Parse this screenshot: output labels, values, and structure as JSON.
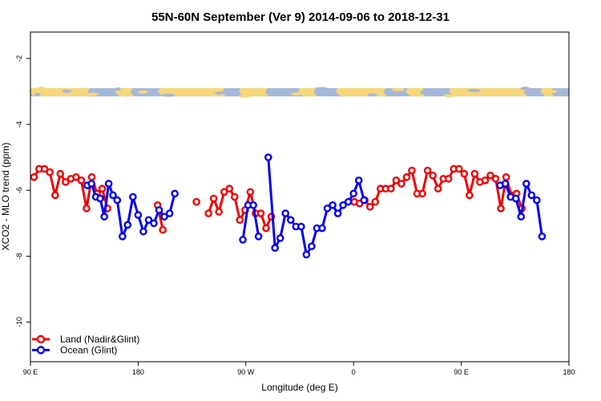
{
  "chart_data": {
    "type": "line",
    "title": "55N-60N September (Ver 9)   2014-09-06 to 2018-12-31",
    "xlabel": "Longitude (deg E)",
    "ylabel": "XCO2 - MLO trend (ppm)",
    "xlim": [
      90,
      450
    ],
    "ylim": [
      -11.2,
      -1.2
    ],
    "x_ticks": [
      {
        "value": 90,
        "label": "90 E"
      },
      {
        "value": 162,
        "label": "180"
      },
      {
        "value": 234,
        "label": "90 W"
      },
      {
        "value": 306,
        "label": "0"
      },
      {
        "value": 378,
        "label": "90 E"
      },
      {
        "value": 450,
        "label": "180"
      }
    ],
    "y_ticks": [
      {
        "value": -10,
        "label": "-10"
      },
      {
        "value": -8,
        "label": "-8"
      },
      {
        "value": -6,
        "label": "-6"
      },
      {
        "value": -4,
        "label": "-4"
      },
      {
        "value": -2,
        "label": "-2"
      }
    ],
    "grid": false,
    "legend_position": "bottom-left",
    "map_strip": {
      "y_range": [
        -3.15,
        -2.9
      ],
      "land_color": "#F7D77A",
      "ocean_color": "#A6B8D8"
    },
    "series": [
      {
        "name": "Land (Nadir&Glint)",
        "color": "#EE0000",
        "segments": [
          [
            [
              92.4,
              -5.6
            ],
            [
              95.8,
              -5.35
            ],
            [
              99.4,
              -5.35
            ],
            [
              102.9,
              -5.45
            ],
            [
              106.5,
              -6.15
            ],
            [
              110,
              -5.5
            ],
            [
              113.5,
              -5.75
            ],
            [
              117,
              -5.65
            ],
            [
              120.5,
              -5.6
            ],
            [
              124,
              -5.7
            ],
            [
              127.5,
              -6.55
            ],
            [
              131,
              -5.6
            ],
            [
              134.5,
              -6.1
            ],
            [
              138,
              -5.95
            ],
            [
              141.5,
              -6.55
            ]
          ],
          [
            [
              175,
              -6.45
            ],
            [
              178.5,
              -7.2
            ]
          ],
          [
            [
              201,
              -6.35
            ]
          ],
          [
            [
              209,
              -6.7
            ],
            [
              212.5,
              -6.25
            ],
            [
              216,
              -6.65
            ],
            [
              219.5,
              -6.05
            ],
            [
              223,
              -5.95
            ],
            [
              226.5,
              -6.2
            ],
            [
              230,
              -6.9
            ],
            [
              233.5,
              -6.6
            ],
            [
              237,
              -6.05
            ],
            [
              240.5,
              -6.7
            ],
            [
              244,
              -6.7
            ],
            [
              247.5,
              -7.15
            ],
            [
              251,
              -6.8
            ]
          ],
          [
            [
              306.5,
              -6.35
            ],
            [
              310,
              -6.4
            ],
            [
              313.5,
              -6.3
            ],
            [
              317,
              -6.5
            ],
            [
              320.5,
              -6.35
            ],
            [
              324,
              -5.95
            ],
            [
              327.5,
              -5.95
            ],
            [
              331,
              -5.95
            ],
            [
              334.5,
              -5.7
            ],
            [
              338,
              -5.8
            ],
            [
              341.5,
              -5.6
            ],
            [
              345,
              -5.4
            ],
            [
              348.5,
              -6.1
            ],
            [
              352,
              -6.1
            ],
            [
              355.5,
              -5.4
            ],
            [
              359,
              -5.55
            ],
            [
              362.5,
              -5.95
            ],
            [
              366,
              -5.65
            ],
            [
              369.5,
              -5.65
            ],
            [
              373,
              -5.35
            ],
            [
              376.5,
              -5.35
            ],
            [
              380,
              -5.5
            ],
            [
              383.5,
              -6.15
            ],
            [
              387,
              -5.5
            ],
            [
              390.5,
              -5.75
            ],
            [
              394,
              -5.7
            ],
            [
              397.5,
              -5.55
            ],
            [
              401,
              -5.65
            ],
            [
              404.5,
              -6.55
            ],
            [
              408,
              -5.6
            ],
            [
              411.5,
              -6.15
            ],
            [
              415,
              -6.1
            ],
            [
              418.5,
              -6.55
            ]
          ]
        ]
      },
      {
        "name": "Ocean (Glint)",
        "color": "#0000EE",
        "segments": [
          [
            [
              128,
              -5.85
            ],
            [
              130.8,
              -5.8
            ],
            [
              133.7,
              -6.2
            ],
            [
              136.6,
              -6.25
            ],
            [
              139.4,
              -6.8
            ],
            [
              142.3,
              -5.8
            ],
            [
              145.2,
              -6.15
            ],
            [
              148,
              -6.3
            ],
            [
              151.5,
              -7.4
            ],
            [
              155,
              -7.05
            ],
            [
              158.5,
              -6.2
            ],
            [
              162,
              -6.75
            ],
            [
              165.5,
              -7.25
            ],
            [
              169,
              -6.9
            ],
            [
              172.5,
              -7.0
            ],
            [
              176,
              -6.6
            ],
            [
              179.5,
              -6.8
            ],
            [
              183,
              -6.7
            ],
            [
              186.5,
              -6.1
            ]
          ],
          [
            [
              232,
              -7.5
            ],
            [
              235.5,
              -6.45
            ],
            [
              239,
              -6.45
            ],
            [
              242.5,
              -7.4
            ]
          ],
          [
            [
              249,
              -5.0
            ],
            [
              253.5,
              -7.75
            ],
            [
              257,
              -7.45
            ],
            [
              260.5,
              -6.7
            ],
            [
              264,
              -6.9
            ],
            [
              267.5,
              -7.1
            ],
            [
              271,
              -7.1
            ],
            [
              274.5,
              -7.95
            ],
            [
              278,
              -7.7
            ],
            [
              281.5,
              -7.15
            ],
            [
              285,
              -7.15
            ],
            [
              288.5,
              -6.55
            ],
            [
              292,
              -6.45
            ],
            [
              295.5,
              -6.7
            ],
            [
              299,
              -6.45
            ],
            [
              302.5,
              -6.35
            ],
            [
              306,
              -6.1
            ],
            [
              309.5,
              -5.7
            ],
            [
              313,
              -6.3
            ]
          ],
          [
            [
              404,
              -5.85
            ],
            [
              407.5,
              -5.8
            ],
            [
              411,
              -6.2
            ],
            [
              414.5,
              -6.25
            ],
            [
              418,
              -6.8
            ],
            [
              421.5,
              -5.8
            ],
            [
              425,
              -6.15
            ],
            [
              428.5,
              -6.3
            ],
            [
              432,
              -7.4
            ]
          ]
        ]
      }
    ],
    "legend": [
      {
        "label": "Land (Nadir&Glint)",
        "color": "#EE0000"
      },
      {
        "label": "Ocean (Glint)",
        "color": "#0000EE"
      }
    ]
  }
}
